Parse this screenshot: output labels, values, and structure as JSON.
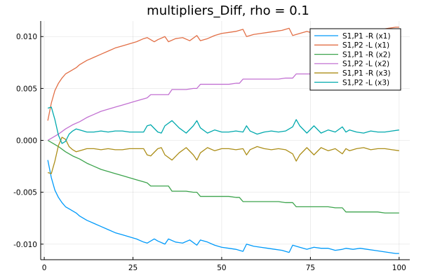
{
  "chart_data": {
    "type": "line",
    "title": "multipliers_Diff, rho = 0.1",
    "xlabel": "",
    "ylabel": "",
    "xlim": [
      -1,
      103
    ],
    "ylim": [
      -0.0115,
      0.0115
    ],
    "x_ticks": [
      0,
      25,
      50,
      75,
      100
    ],
    "x_tick_labels": [
      "0",
      "25",
      "50",
      "75",
      "100"
    ],
    "y_ticks": [
      -0.01,
      -0.005,
      0.0,
      0.005,
      0.01
    ],
    "y_tick_labels": [
      "-0.010",
      "-0.005",
      "0.000",
      "0.005",
      "0.010"
    ],
    "grid": true,
    "legend_position": "top-right",
    "series": [
      {
        "name": "S1,P1 -R (x1)",
        "color": "#009AFA",
        "x": [
          1,
          2,
          3,
          4,
          5,
          6,
          7,
          8,
          9,
          10,
          12,
          14,
          16,
          18,
          20,
          22,
          24,
          26,
          28,
          29,
          31,
          32,
          34,
          35,
          37,
          39,
          41,
          43,
          44,
          46,
          48,
          50,
          52,
          54,
          56,
          57,
          59,
          61,
          63,
          65,
          67,
          69,
          70,
          72,
          74,
          76,
          78,
          80,
          82,
          84,
          85,
          87,
          89,
          91,
          93,
          95,
          97,
          99,
          100
        ],
        "y": [
          -0.0019,
          -0.0036,
          -0.0048,
          -0.0055,
          -0.006,
          -0.0064,
          -0.0066,
          -0.0068,
          -0.007,
          -0.0073,
          -0.0077,
          -0.008,
          -0.0083,
          -0.0086,
          -0.0089,
          -0.0091,
          -0.0093,
          -0.0095,
          -0.0098,
          -0.0099,
          -0.0095,
          -0.0097,
          -0.01,
          -0.0095,
          -0.0098,
          -0.0099,
          -0.0096,
          -0.0101,
          -0.0096,
          -0.0098,
          -0.0101,
          -0.0103,
          -0.0104,
          -0.0105,
          -0.0107,
          -0.01,
          -0.0102,
          -0.0103,
          -0.0104,
          -0.0105,
          -0.0106,
          -0.0108,
          -0.0101,
          -0.0103,
          -0.0105,
          -0.0103,
          -0.0104,
          -0.0104,
          -0.0106,
          -0.0105,
          -0.0104,
          -0.0105,
          -0.0104,
          -0.0105,
          -0.0106,
          -0.0107,
          -0.0108,
          -0.0109,
          -0.0109
        ]
      },
      {
        "name": "S1,P2 -L (x1)",
        "color": "#E26F46",
        "x": [
          1,
          2,
          3,
          4,
          5,
          6,
          7,
          8,
          9,
          10,
          12,
          14,
          16,
          18,
          20,
          22,
          24,
          26,
          28,
          29,
          31,
          32,
          34,
          35,
          37,
          39,
          41,
          43,
          44,
          46,
          48,
          50,
          52,
          54,
          56,
          57,
          59,
          61,
          63,
          65,
          67,
          69,
          70,
          72,
          74,
          76,
          78,
          80,
          82,
          84,
          85,
          87,
          89,
          91,
          93,
          95,
          97,
          99,
          100
        ],
        "y": [
          0.0019,
          0.0036,
          0.0048,
          0.0055,
          0.006,
          0.0064,
          0.0066,
          0.0068,
          0.007,
          0.0073,
          0.0077,
          0.008,
          0.0083,
          0.0086,
          0.0089,
          0.0091,
          0.0093,
          0.0095,
          0.0098,
          0.0099,
          0.0095,
          0.0097,
          0.01,
          0.0095,
          0.0098,
          0.0099,
          0.0096,
          0.0101,
          0.0096,
          0.0098,
          0.0101,
          0.0103,
          0.0104,
          0.0105,
          0.0107,
          0.01,
          0.0102,
          0.0103,
          0.0104,
          0.0105,
          0.0106,
          0.0108,
          0.0101,
          0.0103,
          0.0105,
          0.0103,
          0.0104,
          0.0104,
          0.0106,
          0.0105,
          0.0104,
          0.0105,
          0.0104,
          0.0105,
          0.0106,
          0.0107,
          0.0108,
          0.0109,
          0.0109
        ]
      },
      {
        "name": "S1,P1 -R (x2)",
        "color": "#3DA44D",
        "x": [
          1,
          2,
          4,
          6,
          8,
          10,
          12,
          14,
          16,
          18,
          20,
          22,
          24,
          26,
          28,
          29,
          30,
          32,
          34,
          35,
          36,
          38,
          40,
          42,
          43,
          44,
          46,
          48,
          50,
          52,
          54,
          55,
          56,
          58,
          60,
          62,
          64,
          66,
          68,
          70,
          71,
          72,
          74,
          76,
          78,
          80,
          82,
          84,
          85,
          86,
          88,
          90,
          92,
          94,
          96,
          98,
          100
        ],
        "y": [
          0.0,
          -0.0002,
          -0.0006,
          -0.0011,
          -0.0015,
          -0.0018,
          -0.0022,
          -0.0025,
          -0.0028,
          -0.003,
          -0.0032,
          -0.0034,
          -0.0036,
          -0.0038,
          -0.004,
          -0.0041,
          -0.0044,
          -0.0044,
          -0.0044,
          -0.0044,
          -0.0049,
          -0.0049,
          -0.0049,
          -0.005,
          -0.005,
          -0.0054,
          -0.0054,
          -0.0054,
          -0.0054,
          -0.0054,
          -0.0055,
          -0.0055,
          -0.0059,
          -0.0059,
          -0.0059,
          -0.0059,
          -0.0059,
          -0.0059,
          -0.006,
          -0.006,
          -0.0064,
          -0.0064,
          -0.0064,
          -0.0064,
          -0.0064,
          -0.0064,
          -0.0065,
          -0.0065,
          -0.0069,
          -0.0069,
          -0.0069,
          -0.0069,
          -0.0069,
          -0.0069,
          -0.007,
          -0.007,
          -0.007
        ]
      },
      {
        "name": "S1,P2 -L (x2)",
        "color": "#C271D2",
        "x": [
          1,
          2,
          4,
          6,
          8,
          10,
          12,
          14,
          16,
          18,
          20,
          22,
          24,
          26,
          28,
          29,
          30,
          32,
          34,
          35,
          36,
          38,
          40,
          42,
          43,
          44,
          46,
          48,
          50,
          52,
          54,
          55,
          56,
          58,
          60,
          62,
          64,
          66,
          68,
          70,
          71,
          72,
          74,
          76,
          78,
          80,
          82,
          84,
          85,
          86,
          88,
          90,
          92,
          94,
          96,
          98,
          100
        ],
        "y": [
          0.0,
          0.0002,
          0.0006,
          0.0011,
          0.0015,
          0.0018,
          0.0022,
          0.0025,
          0.0028,
          0.003,
          0.0032,
          0.0034,
          0.0036,
          0.0038,
          0.004,
          0.0041,
          0.0044,
          0.0044,
          0.0044,
          0.0044,
          0.0049,
          0.0049,
          0.0049,
          0.005,
          0.005,
          0.0054,
          0.0054,
          0.0054,
          0.0054,
          0.0054,
          0.0055,
          0.0055,
          0.0059,
          0.0059,
          0.0059,
          0.0059,
          0.0059,
          0.0059,
          0.006,
          0.006,
          0.0064,
          0.0064,
          0.0064,
          0.0064,
          0.0064,
          0.0064,
          0.0065,
          0.0065,
          0.0069,
          0.0069,
          0.0069,
          0.0069,
          0.0069,
          0.0069,
          0.007,
          0.007,
          0.007
        ]
      },
      {
        "name": "S1,P1 -R (x3)",
        "color": "#AC8E18",
        "x": [
          1,
          2,
          3,
          4,
          5,
          6,
          7,
          8,
          9,
          10,
          12,
          14,
          16,
          18,
          20,
          22,
          24,
          26,
          28,
          29,
          30,
          32,
          33,
          34,
          36,
          38,
          40,
          42,
          43,
          44,
          46,
          48,
          50,
          52,
          54,
          56,
          57,
          58,
          60,
          62,
          64,
          66,
          68,
          70,
          71,
          72,
          74,
          76,
          78,
          80,
          82,
          84,
          85,
          86,
          88,
          90,
          92,
          94,
          96,
          98,
          100
        ],
        "y": [
          -0.0031,
          -0.0032,
          -0.002,
          -0.0005,
          0.0003,
          0.0001,
          -0.0006,
          -0.0009,
          -0.0011,
          -0.001,
          -0.0008,
          -0.0008,
          -0.0009,
          -0.0008,
          -0.0009,
          -0.0009,
          -0.0008,
          -0.0008,
          -0.0008,
          -0.0014,
          -0.0015,
          -0.0008,
          -0.0007,
          -0.0014,
          -0.0019,
          -0.0012,
          -0.0007,
          -0.0014,
          -0.0019,
          -0.0012,
          -0.0007,
          -0.001,
          -0.0008,
          -0.0008,
          -0.0009,
          -0.0008,
          -0.0014,
          -0.0009,
          -0.0006,
          -0.0008,
          -0.0009,
          -0.0008,
          -0.0009,
          -0.0013,
          -0.002,
          -0.0014,
          -0.0007,
          -0.0014,
          -0.0007,
          -0.001,
          -0.0008,
          -0.0013,
          -0.0008,
          -0.001,
          -0.0008,
          -0.0007,
          -0.0009,
          -0.0008,
          -0.0008,
          -0.0009,
          -0.001
        ]
      },
      {
        "name": "S1,P2 -L (x3)",
        "color": "#00A9AD",
        "x": [
          1,
          2,
          3,
          4,
          5,
          6,
          7,
          8,
          9,
          10,
          12,
          14,
          16,
          18,
          20,
          22,
          24,
          26,
          28,
          29,
          30,
          32,
          33,
          34,
          36,
          38,
          40,
          42,
          43,
          44,
          46,
          48,
          50,
          52,
          54,
          56,
          57,
          58,
          60,
          62,
          64,
          66,
          68,
          70,
          71,
          72,
          74,
          76,
          78,
          80,
          82,
          84,
          85,
          86,
          88,
          90,
          92,
          94,
          96,
          98,
          100
        ],
        "y": [
          0.0031,
          0.0032,
          0.002,
          0.0005,
          -0.0003,
          -0.0001,
          0.0006,
          0.0009,
          0.0011,
          0.001,
          0.0008,
          0.0008,
          0.0009,
          0.0008,
          0.0009,
          0.0009,
          0.0008,
          0.0008,
          0.0008,
          0.0014,
          0.0015,
          0.0008,
          0.0007,
          0.0014,
          0.0019,
          0.0012,
          0.0007,
          0.0014,
          0.0019,
          0.0012,
          0.0007,
          0.001,
          0.0008,
          0.0008,
          0.0009,
          0.0008,
          0.0014,
          0.0009,
          0.0006,
          0.0008,
          0.0009,
          0.0008,
          0.0009,
          0.0013,
          0.002,
          0.0014,
          0.0007,
          0.0014,
          0.0007,
          0.001,
          0.0008,
          0.0013,
          0.0008,
          0.001,
          0.0008,
          0.0007,
          0.0009,
          0.0008,
          0.0008,
          0.0009,
          0.001
        ]
      }
    ]
  }
}
